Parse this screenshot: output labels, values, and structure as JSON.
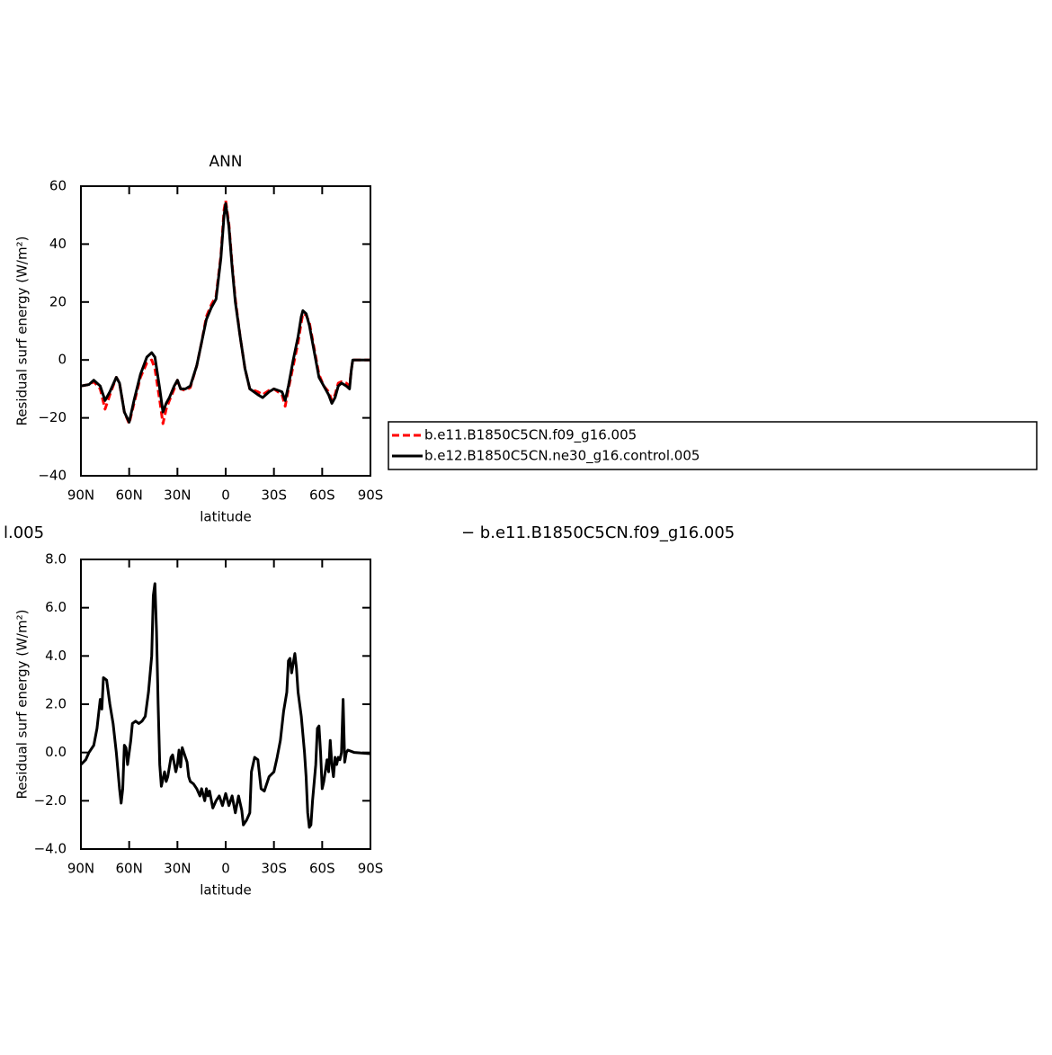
{
  "chart_data": [
    {
      "type": "line",
      "title": "ANN",
      "xlabel": "latitude",
      "ylabel": "Residual surf energy (W/m²)",
      "x": [
        90,
        85,
        82,
        78,
        75,
        72,
        68,
        66,
        63,
        60,
        57,
        53,
        49,
        46,
        44,
        41,
        39,
        37,
        35,
        32,
        30,
        28,
        25,
        22,
        18,
        15,
        12,
        9,
        6,
        3,
        1,
        0,
        -2,
        -4,
        -6,
        -9,
        -12,
        -15,
        -20,
        -23,
        -27,
        -30,
        -35,
        -37,
        -39,
        -42,
        -45,
        -47,
        -48,
        -50,
        -52,
        -55,
        -58,
        -61,
        -64,
        -66,
        -68,
        -70,
        -72,
        -75,
        -77,
        -78,
        -79,
        -80,
        -85,
        -90
      ],
      "series": [
        {
          "name": "b.e11.B1850C5CN.f09_g16.005",
          "color": "#ff0000",
          "dashed": true,
          "values": [
            -9,
            -8.5,
            -7.5,
            -10,
            -17,
            -12,
            -6,
            -8,
            -18,
            -22,
            -15,
            -6,
            -1,
            0,
            -3,
            -14,
            -22,
            -17,
            -14,
            -10,
            -7,
            -10,
            -10.5,
            -9.5,
            -2,
            6,
            15,
            19,
            22,
            36,
            52,
            55,
            47,
            33,
            21,
            8,
            -3,
            -10,
            -11,
            -12,
            -10.5,
            -10,
            -12,
            -16,
            -10,
            -2,
            6,
            13,
            16,
            15.5,
            13,
            4,
            -5,
            -9,
            -11,
            -14,
            -12,
            -8,
            -7.5,
            -8,
            -9,
            -4,
            0,
            0,
            0,
            0
          ]
        },
        {
          "name": "b.e12.B1850C5CN.ne30_g16.control.005",
          "color": "#000000",
          "dashed": false,
          "values": [
            -9,
            -8.5,
            -7,
            -9,
            -14,
            -11,
            -6,
            -8,
            -18,
            -21.5,
            -14,
            -5,
            1,
            2.5,
            1,
            -10,
            -18,
            -15,
            -13,
            -9,
            -7,
            -10,
            -10,
            -9,
            -2,
            6,
            14,
            18,
            21,
            35,
            50,
            54,
            46,
            32,
            20,
            8,
            -3,
            -10,
            -12,
            -13,
            -11,
            -10,
            -11,
            -14,
            -9,
            0,
            8,
            15,
            17,
            16,
            12,
            3,
            -6,
            -9,
            -12,
            -15,
            -13,
            -9,
            -8,
            -9,
            -10,
            -4,
            0,
            0,
            0,
            0
          ]
        }
      ],
      "xlim": [
        90,
        -90
      ],
      "xticks": [
        {
          "value": 90,
          "label": "90N"
        },
        {
          "value": 60,
          "label": "60N"
        },
        {
          "value": 30,
          "label": "30N"
        },
        0,
        {
          "value": -30,
          "label": "30S"
        },
        {
          "value": -60,
          "label": "60S"
        },
        {
          "value": -90,
          "label": "90S"
        }
      ],
      "ylim": [
        -40,
        60
      ],
      "yticks": [
        {
          "value": -40,
          "label": "−40"
        },
        {
          "value": -20,
          "label": "−20"
        },
        0,
        20,
        40,
        60
      ]
    },
    {
      "type": "line",
      "title_left": "l.005",
      "title_right": "− b.e11.B1850C5CN.f09_g16.005",
      "xlabel": "latitude",
      "ylabel": "Residual surf energy (W/m²)",
      "x": [
        90,
        87,
        85,
        82,
        80,
        78,
        77,
        76,
        74,
        72,
        70,
        68,
        66,
        65,
        64,
        63,
        62,
        61,
        60,
        59,
        58,
        56,
        54,
        52,
        50,
        48,
        46,
        45,
        44,
        43,
        42,
        41,
        40,
        38,
        37,
        36,
        34,
        33,
        31,
        30,
        29,
        28,
        27,
        26,
        24,
        23,
        22,
        20,
        18,
        16,
        15,
        13,
        12,
        11,
        10,
        8,
        6,
        4,
        2,
        0,
        -2,
        -4,
        -6,
        -8,
        -10,
        -11,
        -13,
        -15,
        -16,
        -18,
        -20,
        -22,
        -24,
        -27,
        -30,
        -32,
        -34,
        -36,
        -38,
        -39,
        -40,
        -41,
        -43,
        -44,
        -45,
        -47,
        -49,
        -50,
        -51,
        -52,
        -53,
        -54,
        -56,
        -57,
        -58,
        -59,
        -60,
        -61,
        -63,
        -64,
        -65,
        -66,
        -67,
        -68,
        -69,
        -70,
        -71,
        -72,
        -73,
        -74,
        -75,
        -76,
        -80,
        -90
      ],
      "series": [
        {
          "color": "#000000",
          "values": [
            -0.5,
            -0.3,
            0,
            0.3,
            1,
            2.2,
            1.8,
            3.1,
            3.0,
            2,
            1.2,
            0,
            -1.5,
            -2.1,
            -1.5,
            0.3,
            0.2,
            -0.5,
            0,
            0.5,
            1.2,
            1.3,
            1.2,
            1.3,
            1.5,
            2.5,
            4,
            6.5,
            7.0,
            5,
            2,
            -0.5,
            -1.4,
            -0.8,
            -1.2,
            -1,
            -0.2,
            -0.1,
            -0.8,
            -0.5,
            0.1,
            -0.6,
            0.2,
            0,
            -0.4,
            -1,
            -1.2,
            -1.3,
            -1.5,
            -1.8,
            -1.5,
            -2.0,
            -1.5,
            -1.8,
            -1.6,
            -2.3,
            -2.0,
            -1.8,
            -2.2,
            -1.7,
            -2.2,
            -1.8,
            -2.5,
            -1.8,
            -2.4,
            -3.0,
            -2.8,
            -2.5,
            -0.8,
            -0.2,
            -0.3,
            -1.5,
            -1.6,
            -1,
            -0.8,
            -0.2,
            0.5,
            1.7,
            2.5,
            3.8,
            3.9,
            3.3,
            4.1,
            3.5,
            2.5,
            1.5,
            0,
            -1,
            -2.5,
            -3.1,
            -3,
            -2,
            -0.5,
            1.0,
            1.1,
            0,
            -1.5,
            -1.2,
            -0.3,
            -0.8,
            0.5,
            -0.5,
            -1.0,
            -0.2,
            -0.5,
            -0.2,
            -0.3,
            0,
            2.2,
            -0.4,
            0,
            0.1,
            0,
            -0.05
          ]
        }
      ],
      "xlim": [
        90,
        -90
      ],
      "xticks": [
        {
          "value": 90,
          "label": "90N"
        },
        {
          "value": 60,
          "label": "60N"
        },
        {
          "value": 30,
          "label": "30N"
        },
        0,
        {
          "value": -30,
          "label": "30S"
        },
        {
          "value": -60,
          "label": "60S"
        },
        {
          "value": -90,
          "label": "90S"
        }
      ],
      "ylim": [
        -4,
        8
      ],
      "yticks": [
        {
          "value": -4,
          "label": "−4.0"
        },
        {
          "value": -2,
          "label": "−2.0"
        },
        {
          "value": 0,
          "label": "0.0"
        },
        {
          "value": 2,
          "label": "2.0"
        },
        {
          "value": 4,
          "label": "4.0"
        },
        {
          "value": 6,
          "label": "6.0"
        },
        {
          "value": 8,
          "label": "8.0"
        }
      ]
    }
  ]
}
